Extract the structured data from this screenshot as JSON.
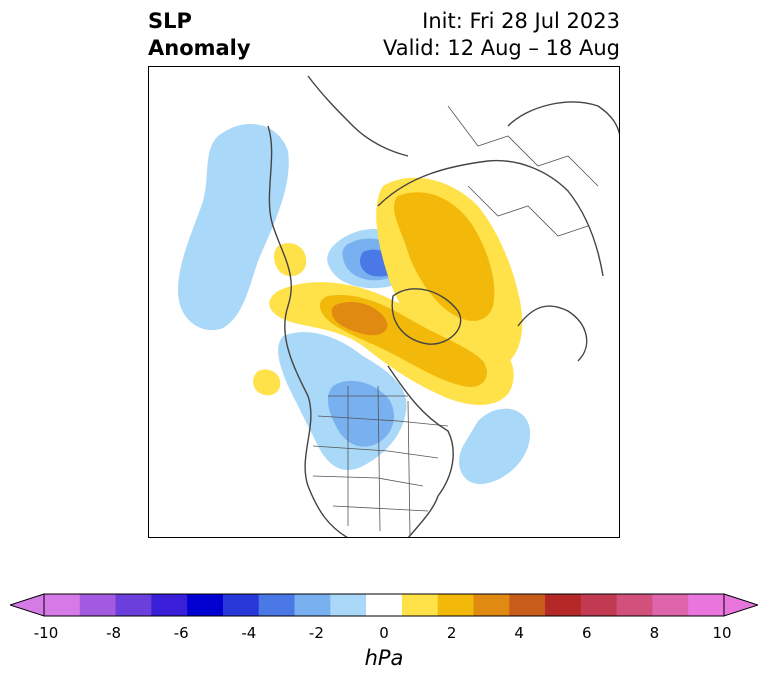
{
  "title": {
    "left_line1": "SLP",
    "left_line2": "Anomaly",
    "init": "Init: Fri 28 Jul 2023",
    "valid": "Valid: 12 Aug – 18 Aug"
  },
  "colorbar": {
    "unit": "hPa",
    "tick_labels": [
      "-10",
      "-8",
      "-6",
      "-4",
      "-2",
      "0",
      "2",
      "4",
      "6",
      "8",
      "10"
    ],
    "tick_values": [
      -10,
      -8,
      -6,
      -4,
      -2,
      0,
      2,
      4,
      6,
      8,
      10
    ],
    "colors": [
      "#d67ae8",
      "#a35ae0",
      "#6a3fdc",
      "#3a1fd8",
      "#0000d0",
      "#2838d8",
      "#4a78e6",
      "#78b0f0",
      "#aad8f8",
      "#ffffff",
      "#ffe14a",
      "#f2b80a",
      "#e08a12",
      "#c85c1a",
      "#b42828",
      "#c23a52",
      "#d2507c",
      "#de64ac",
      "#e876dc"
    ],
    "min_color": "#d67ae8",
    "max_color": "#e876dc"
  },
  "map": {
    "projection": "polar-stereographic",
    "region": "Northern Hemisphere",
    "features": [
      "coastlines",
      "country-borders",
      "us-state-borders"
    ]
  }
}
